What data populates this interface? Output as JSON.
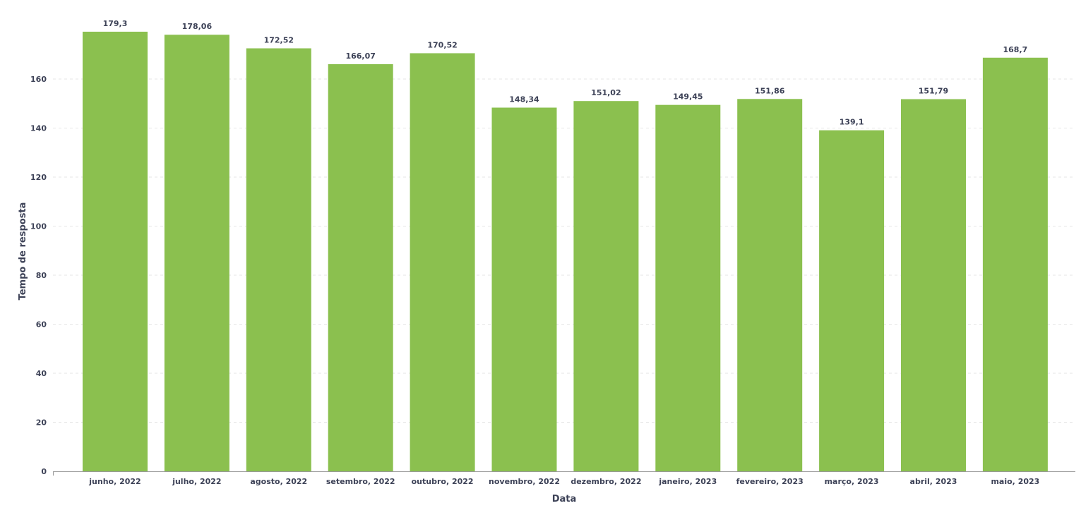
{
  "chart_data": {
    "type": "bar",
    "categories": [
      "junho, 2022",
      "julho, 2022",
      "agosto, 2022",
      "setembro, 2022",
      "outubro, 2022",
      "novembro, 2022",
      "dezembro, 2022",
      "janeiro, 2023",
      "fevereiro, 2023",
      "março, 2023",
      "abril, 2023",
      "maio, 2023"
    ],
    "values": [
      179.3,
      178.06,
      172.52,
      166.07,
      170.52,
      148.34,
      151.02,
      149.45,
      151.86,
      139.1,
      151.79,
      168.7
    ],
    "data_labels": [
      "179,3",
      "178,06",
      "172,52",
      "166,07",
      "170,52",
      "148,34",
      "151,02",
      "149,45",
      "151,86",
      "139,1",
      "151,79",
      "168,7"
    ],
    "title": "",
    "xlabel": "Data",
    "ylabel": "Tempo de resposta",
    "ylim": [
      0,
      180
    ],
    "yticks": [
      0,
      20,
      40,
      60,
      80,
      100,
      120,
      140,
      160
    ],
    "grid": true,
    "legend": "none",
    "bar_color": "#8bc04f"
  }
}
